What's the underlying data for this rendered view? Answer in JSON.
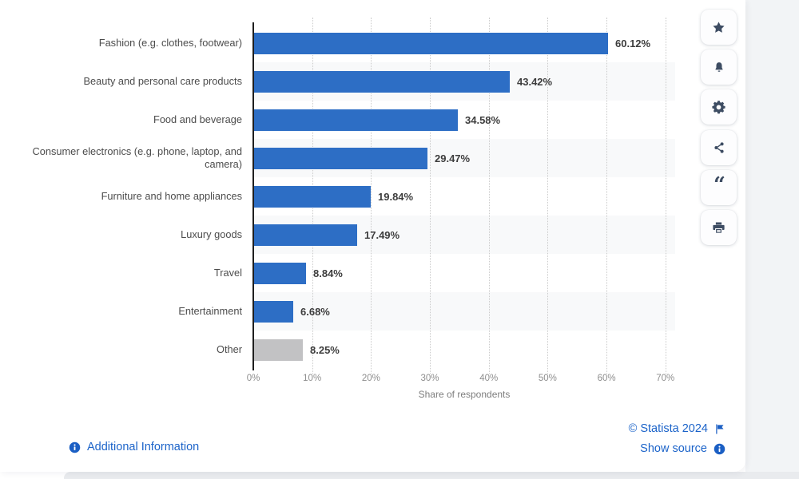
{
  "chart_data": {
    "type": "bar",
    "orientation": "horizontal",
    "title": "",
    "categories": [
      "Fashion (e.g. clothes, footwear)",
      "Beauty and personal care products",
      "Food and beverage",
      "Consumer electronics (e.g. phone, laptop, and camera)",
      "Furniture and home appliances",
      "Luxury goods",
      "Travel",
      "Entertainment",
      "Other"
    ],
    "values": [
      60.12,
      43.42,
      34.58,
      29.47,
      19.84,
      17.49,
      8.84,
      6.68,
      8.25
    ],
    "value_labels": [
      "60.12%",
      "43.42%",
      "34.58%",
      "29.47%",
      "19.84%",
      "17.49%",
      "8.84%",
      "6.68%",
      "8.25%"
    ],
    "bar_colors": [
      "#2d6ec5",
      "#2d6ec5",
      "#2d6ec5",
      "#2d6ec5",
      "#2d6ec5",
      "#2d6ec5",
      "#2d6ec5",
      "#2d6ec5",
      "#c2c2c4"
    ],
    "xlabel": "Share of respondents",
    "xlim": [
      0,
      70
    ],
    "xticks": [
      "0%",
      "10%",
      "20%",
      "30%",
      "40%",
      "50%",
      "60%",
      "70%"
    ],
    "grid": "vertical-dotted",
    "legend": "none",
    "row_banding": "alternate light gray on even rows (2,4,6,8)"
  },
  "toolbar": {
    "buttons": [
      {
        "name": "favorite",
        "icon": "star-icon"
      },
      {
        "name": "notifications",
        "icon": "bell-icon"
      },
      {
        "name": "settings",
        "icon": "gear-icon"
      },
      {
        "name": "share",
        "icon": "share-icon"
      },
      {
        "name": "cite",
        "icon": "quote-icon"
      },
      {
        "name": "print",
        "icon": "printer-icon"
      }
    ]
  },
  "footer": {
    "additional_information": "Additional Information",
    "copyright": "© Statista 2024",
    "show_source": "Show source"
  },
  "colors": {
    "bar_blue": "#2d6ec5",
    "bar_gray": "#c2c2c4",
    "link_blue": "#1b63c9",
    "info_icon_blue": "#1b5fc4",
    "toolbar_icon": "#3e4d63",
    "row_band": "#f8f9fa",
    "right_strip": "#f2f4f6",
    "bottom_strip": "#e9ebee"
  }
}
